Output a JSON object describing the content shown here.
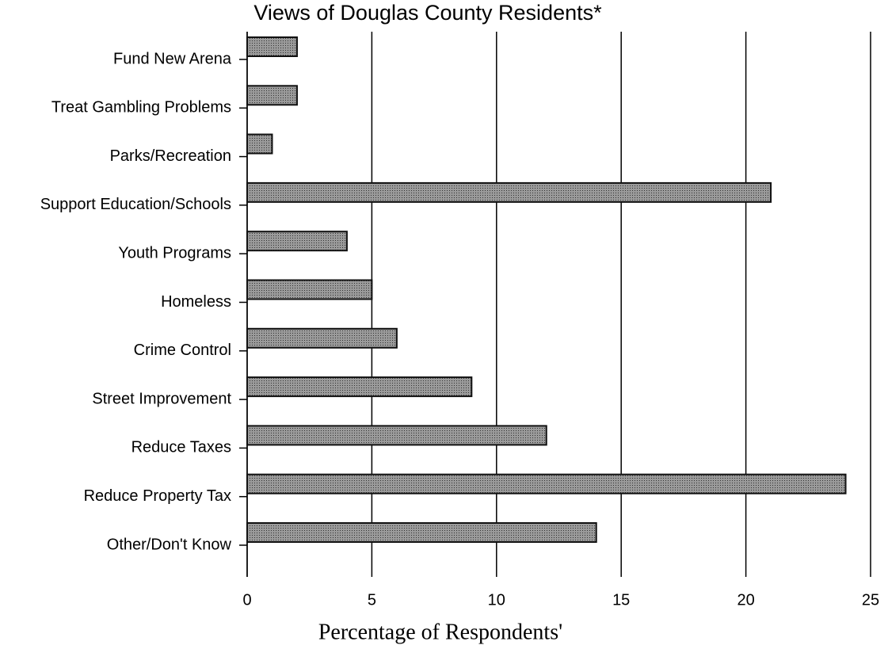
{
  "chart_data": {
    "type": "barh",
    "title": "Views of Douglas County Residents*",
    "x_label": "Percentage of Respondents'",
    "categories": [
      "Fund New Arena",
      "Treat Gambling Problems",
      "Parks/Recreation",
      "Support Education/Schools",
      "Youth Programs",
      "Homeless",
      "Crime Control",
      "Street Improvement",
      "Reduce Taxes",
      "Reduce Property Tax",
      "Other/Don't Know"
    ],
    "values": [
      2,
      2,
      1,
      21,
      4,
      5,
      6,
      9,
      12,
      24,
      14
    ],
    "color": "#8a8a8a",
    "xlim": [
      0,
      25
    ],
    "xticks": [
      0,
      5,
      10,
      15,
      20,
      25
    ],
    "grid": true
  }
}
